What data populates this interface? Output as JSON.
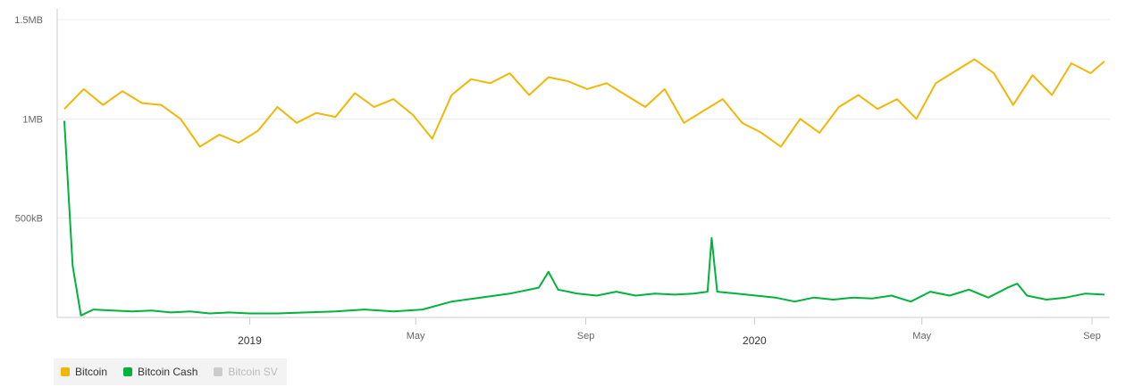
{
  "chart_data": {
    "type": "line",
    "y_ticks": [
      {
        "value": 0,
        "label": ""
      },
      {
        "value": 500,
        "label": "500kB"
      },
      {
        "value": 1000,
        "label": "1MB"
      },
      {
        "value": 1500,
        "label": "1.5MB"
      }
    ],
    "ylim": [
      0,
      1500
    ],
    "x_ticks": [
      {
        "date": "2019-01-01",
        "label": "2019",
        "bold": true
      },
      {
        "date": "2019-05-01",
        "label": "May",
        "bold": false
      },
      {
        "date": "2019-09-01",
        "label": "Sep",
        "bold": false
      },
      {
        "date": "2020-01-01",
        "label": "2020",
        "bold": true
      },
      {
        "date": "2020-05-01",
        "label": "May",
        "bold": false
      },
      {
        "date": "2020-09-01",
        "label": "Sep",
        "bold": false
      }
    ],
    "xlim": [
      "2018-08-20",
      "2020-09-10"
    ],
    "grid": true,
    "legend_position": "bottom-left",
    "series": [
      {
        "name": "Bitcoin",
        "color": "#f2b705",
        "points": [
          [
            "2018-08-20",
            1050
          ],
          [
            "2018-09-03",
            1150
          ],
          [
            "2018-09-17",
            1070
          ],
          [
            "2018-10-01",
            1140
          ],
          [
            "2018-10-15",
            1080
          ],
          [
            "2018-10-29",
            1070
          ],
          [
            "2018-11-12",
            1000
          ],
          [
            "2018-11-26",
            860
          ],
          [
            "2018-12-10",
            920
          ],
          [
            "2018-12-24",
            880
          ],
          [
            "2019-01-07",
            940
          ],
          [
            "2019-01-21",
            1060
          ],
          [
            "2019-02-04",
            980
          ],
          [
            "2019-02-18",
            1030
          ],
          [
            "2019-03-04",
            1010
          ],
          [
            "2019-03-18",
            1130
          ],
          [
            "2019-04-01",
            1060
          ],
          [
            "2019-04-15",
            1100
          ],
          [
            "2019-04-29",
            1020
          ],
          [
            "2019-05-13",
            900
          ],
          [
            "2019-05-27",
            1120
          ],
          [
            "2019-06-10",
            1200
          ],
          [
            "2019-06-24",
            1180
          ],
          [
            "2019-07-08",
            1230
          ],
          [
            "2019-07-22",
            1120
          ],
          [
            "2019-08-05",
            1210
          ],
          [
            "2019-08-19",
            1190
          ],
          [
            "2019-09-02",
            1150
          ],
          [
            "2019-09-16",
            1180
          ],
          [
            "2019-09-30",
            1120
          ],
          [
            "2019-10-14",
            1060
          ],
          [
            "2019-10-28",
            1150
          ],
          [
            "2019-11-11",
            980
          ],
          [
            "2019-11-25",
            1040
          ],
          [
            "2019-12-09",
            1100
          ],
          [
            "2019-12-23",
            980
          ],
          [
            "2020-01-06",
            930
          ],
          [
            "2020-01-20",
            860
          ],
          [
            "2020-02-03",
            1000
          ],
          [
            "2020-02-17",
            930
          ],
          [
            "2020-03-02",
            1060
          ],
          [
            "2020-03-16",
            1120
          ],
          [
            "2020-03-30",
            1050
          ],
          [
            "2020-04-13",
            1100
          ],
          [
            "2020-04-27",
            1000
          ],
          [
            "2020-05-11",
            1180
          ],
          [
            "2020-05-25",
            1240
          ],
          [
            "2020-06-08",
            1300
          ],
          [
            "2020-06-22",
            1230
          ],
          [
            "2020-07-06",
            1070
          ],
          [
            "2020-07-20",
            1220
          ],
          [
            "2020-08-03",
            1120
          ],
          [
            "2020-08-17",
            1280
          ],
          [
            "2020-08-31",
            1230
          ],
          [
            "2020-09-10",
            1290
          ]
        ]
      },
      {
        "name": "Bitcoin Cash",
        "color": "#00b33c",
        "points": [
          [
            "2018-08-20",
            990
          ],
          [
            "2018-08-26",
            260
          ],
          [
            "2018-09-01",
            10
          ],
          [
            "2018-09-10",
            40
          ],
          [
            "2018-09-24",
            35
          ],
          [
            "2018-10-08",
            30
          ],
          [
            "2018-10-22",
            35
          ],
          [
            "2018-11-05",
            25
          ],
          [
            "2018-11-19",
            30
          ],
          [
            "2018-12-03",
            20
          ],
          [
            "2018-12-17",
            25
          ],
          [
            "2019-01-01",
            20
          ],
          [
            "2019-01-21",
            20
          ],
          [
            "2019-02-11",
            25
          ],
          [
            "2019-03-04",
            30
          ],
          [
            "2019-03-25",
            40
          ],
          [
            "2019-04-15",
            30
          ],
          [
            "2019-05-06",
            40
          ],
          [
            "2019-05-27",
            80
          ],
          [
            "2019-06-17",
            100
          ],
          [
            "2019-07-08",
            120
          ],
          [
            "2019-07-29",
            150
          ],
          [
            "2019-08-05",
            230
          ],
          [
            "2019-08-12",
            140
          ],
          [
            "2019-08-26",
            120
          ],
          [
            "2019-09-09",
            110
          ],
          [
            "2019-09-23",
            130
          ],
          [
            "2019-10-07",
            110
          ],
          [
            "2019-10-21",
            120
          ],
          [
            "2019-11-04",
            115
          ],
          [
            "2019-11-18",
            120
          ],
          [
            "2019-11-28",
            130
          ],
          [
            "2019-12-01",
            400
          ],
          [
            "2019-12-05",
            130
          ],
          [
            "2019-12-19",
            120
          ],
          [
            "2020-01-02",
            110
          ],
          [
            "2020-01-16",
            100
          ],
          [
            "2020-01-30",
            80
          ],
          [
            "2020-02-13",
            100
          ],
          [
            "2020-02-27",
            90
          ],
          [
            "2020-03-12",
            100
          ],
          [
            "2020-03-26",
            95
          ],
          [
            "2020-04-09",
            110
          ],
          [
            "2020-04-23",
            80
          ],
          [
            "2020-05-07",
            130
          ],
          [
            "2020-05-21",
            110
          ],
          [
            "2020-06-04",
            140
          ],
          [
            "2020-06-18",
            100
          ],
          [
            "2020-07-02",
            150
          ],
          [
            "2020-07-09",
            170
          ],
          [
            "2020-07-16",
            110
          ],
          [
            "2020-07-30",
            90
          ],
          [
            "2020-08-13",
            100
          ],
          [
            "2020-08-27",
            120
          ],
          [
            "2020-09-10",
            115
          ]
        ]
      },
      {
        "name": "Bitcoin SV",
        "color": "#cccccc",
        "visible": false,
        "points": []
      }
    ]
  }
}
